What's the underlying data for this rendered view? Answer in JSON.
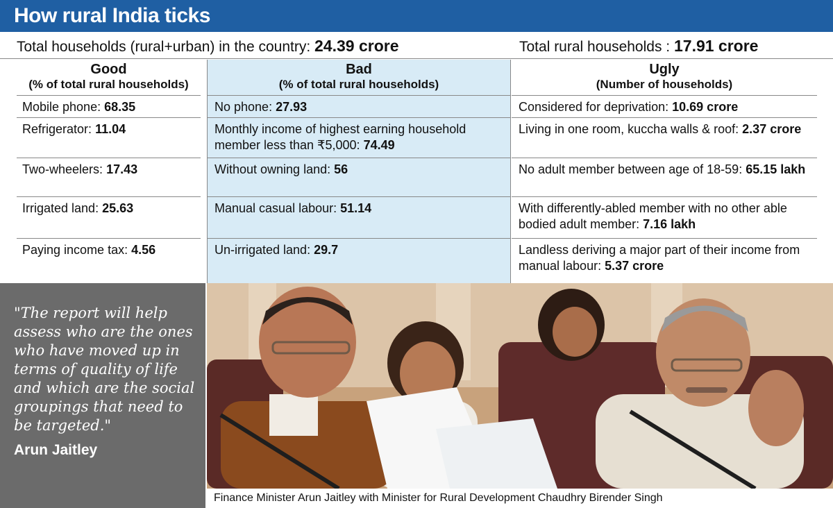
{
  "title": "How rural India ticks",
  "summary": {
    "total_label": "Total households (rural+urban) in the country:",
    "total_value": "24.39 crore",
    "rural_label": "Total rural households :",
    "rural_value": "17.91 crore"
  },
  "columns": {
    "good": {
      "title": "Good",
      "subtitle": "(% of total rural households)"
    },
    "bad": {
      "title": "Bad",
      "subtitle": "(% of total rural households)"
    },
    "ugly": {
      "title": "Ugly",
      "subtitle": "(Number of households)"
    }
  },
  "good": [
    {
      "label": "Mobile phone:",
      "value": "68.35"
    },
    {
      "label": "Refrigerator:",
      "value": "11.04"
    },
    {
      "label": "Two-wheelers:",
      "value": "17.43"
    },
    {
      "label": "Irrigated land:",
      "value": "25.63"
    },
    {
      "label": "Paying income tax:",
      "value": "4.56"
    }
  ],
  "bad": [
    {
      "label": "No phone:",
      "value": "27.93"
    },
    {
      "label": "Monthly income of highest earning household member less than ₹5,000:",
      "value": "74.49"
    },
    {
      "label": "Without owning land:",
      "value": "56"
    },
    {
      "label": "Manual casual labour:",
      "value": "51.14"
    },
    {
      "label": "Un-irrigated land:",
      "value": "29.7"
    }
  ],
  "ugly": [
    {
      "label": "Considered for deprivation:",
      "value": "10.69 crore"
    },
    {
      "label": "Living in one room, kuccha walls & roof:",
      "value": "2.37 crore"
    },
    {
      "label": "No adult member between age of 18-59:",
      "value": "65.15 lakh"
    },
    {
      "label": "With differently-abled member with no other able bodied adult member:",
      "value": "7.16 lakh"
    },
    {
      "label": "Landless deriving a major part of their income from manual labour:",
      "value": "5.37 crore"
    }
  ],
  "quote": {
    "text": "\"The report will help assess who are the ones who have moved up in terms of quality of life and which are the social groupings that need to be targeted.\"",
    "author": "Arun Jaitley"
  },
  "caption": "Finance Minister Arun Jaitley with Minister for Rural Development Chaudhry Birender Singh",
  "colors": {
    "title_bar": "#1f5fa3",
    "bad_column": "#d8ebf6",
    "quote_panel": "#6b6b6b"
  }
}
